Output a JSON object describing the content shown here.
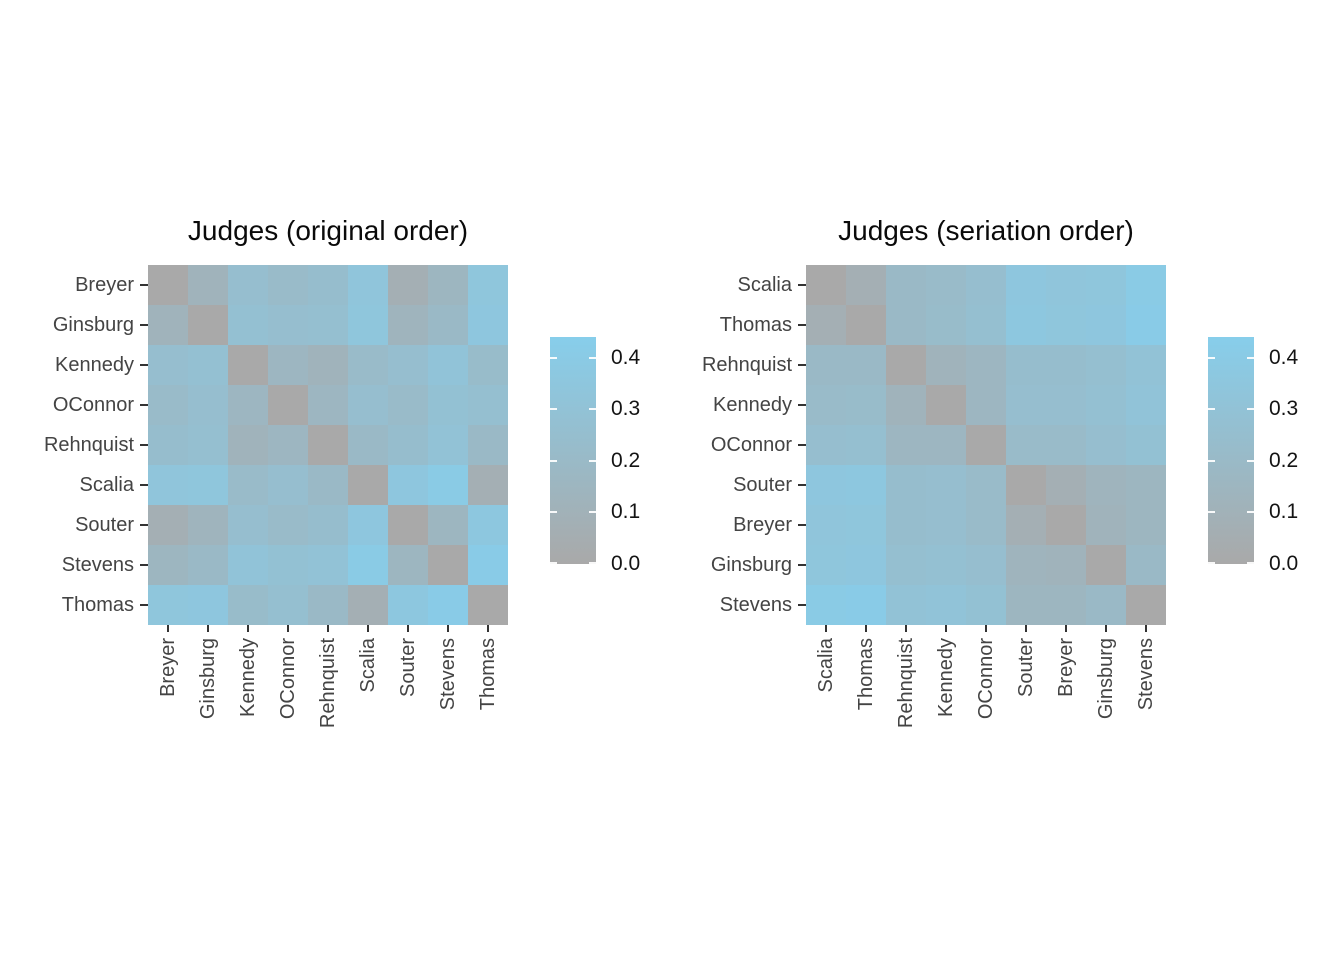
{
  "figure": {
    "background": "#ffffff"
  },
  "chart_data": [
    {
      "type": "heatmap",
      "title": "Judges (original order)",
      "row_labels": [
        "Breyer",
        "Ginsburg",
        "Kennedy",
        "OConnor",
        "Rehnquist",
        "Scalia",
        "Souter",
        "Stevens",
        "Thomas"
      ],
      "col_labels": [
        "Breyer",
        "Ginsburg",
        "Kennedy",
        "OConnor",
        "Rehnquist",
        "Scalia",
        "Souter",
        "Stevens",
        "Thomas"
      ],
      "matrix": [
        [
          0.0,
          0.12,
          0.25,
          0.21,
          0.24,
          0.33,
          0.07,
          0.15,
          0.34
        ],
        [
          0.12,
          0.0,
          0.27,
          0.25,
          0.26,
          0.34,
          0.13,
          0.19,
          0.35
        ],
        [
          0.25,
          0.27,
          0.0,
          0.16,
          0.12,
          0.21,
          0.25,
          0.31,
          0.22
        ],
        [
          0.21,
          0.25,
          0.16,
          0.0,
          0.16,
          0.25,
          0.21,
          0.28,
          0.26
        ],
        [
          0.24,
          0.26,
          0.12,
          0.16,
          0.0,
          0.19,
          0.24,
          0.3,
          0.19
        ],
        [
          0.33,
          0.34,
          0.21,
          0.25,
          0.19,
          0.0,
          0.35,
          0.4,
          0.07
        ],
        [
          0.07,
          0.13,
          0.25,
          0.21,
          0.24,
          0.35,
          0.0,
          0.15,
          0.36
        ],
        [
          0.15,
          0.19,
          0.31,
          0.28,
          0.3,
          0.4,
          0.15,
          0.0,
          0.41
        ],
        [
          0.34,
          0.35,
          0.22,
          0.26,
          0.19,
          0.07,
          0.36,
          0.41,
          0.0
        ]
      ],
      "value_range": [
        0,
        0.44
      ],
      "colors": {
        "low": "#A9A9A9",
        "high": "#87CEEB"
      },
      "grid": false,
      "legend_position": "right"
    },
    {
      "type": "heatmap",
      "title": "Judges (seriation order)",
      "row_labels": [
        "Scalia",
        "Thomas",
        "Rehnquist",
        "Kennedy",
        "OConnor",
        "Souter",
        "Breyer",
        "Ginsburg",
        "Stevens"
      ],
      "col_labels": [
        "Scalia",
        "Thomas",
        "Rehnquist",
        "Kennedy",
        "OConnor",
        "Souter",
        "Breyer",
        "Ginsburg",
        "Stevens"
      ],
      "matrix": [
        [
          0.0,
          0.07,
          0.19,
          0.21,
          0.25,
          0.35,
          0.33,
          0.34,
          0.4
        ],
        [
          0.07,
          0.0,
          0.19,
          0.22,
          0.26,
          0.36,
          0.34,
          0.35,
          0.41
        ],
        [
          0.19,
          0.19,
          0.0,
          0.12,
          0.16,
          0.24,
          0.24,
          0.26,
          0.3
        ],
        [
          0.21,
          0.22,
          0.12,
          0.0,
          0.16,
          0.25,
          0.25,
          0.27,
          0.31
        ],
        [
          0.25,
          0.26,
          0.16,
          0.16,
          0.0,
          0.21,
          0.21,
          0.25,
          0.28
        ],
        [
          0.35,
          0.36,
          0.24,
          0.25,
          0.21,
          0.0,
          0.07,
          0.13,
          0.15
        ],
        [
          0.33,
          0.34,
          0.24,
          0.25,
          0.21,
          0.07,
          0.0,
          0.12,
          0.15
        ],
        [
          0.34,
          0.35,
          0.26,
          0.27,
          0.25,
          0.13,
          0.12,
          0.0,
          0.19
        ],
        [
          0.4,
          0.41,
          0.3,
          0.31,
          0.28,
          0.15,
          0.15,
          0.19,
          0.0
        ]
      ],
      "value_range": [
        0,
        0.44
      ],
      "colors": {
        "low": "#A9A9A9",
        "high": "#87CEEB"
      },
      "grid": false,
      "legend_position": "right"
    }
  ],
  "legend": {
    "tick_labels": [
      "0.0",
      "0.1",
      "0.2",
      "0.3",
      "0.4"
    ],
    "tick_values": [
      0.0,
      0.1,
      0.2,
      0.3,
      0.4
    ],
    "vmin": 0,
    "vmax": 0.44,
    "low_color": "#A9A9A9",
    "high_color": "#87CEEB"
  }
}
